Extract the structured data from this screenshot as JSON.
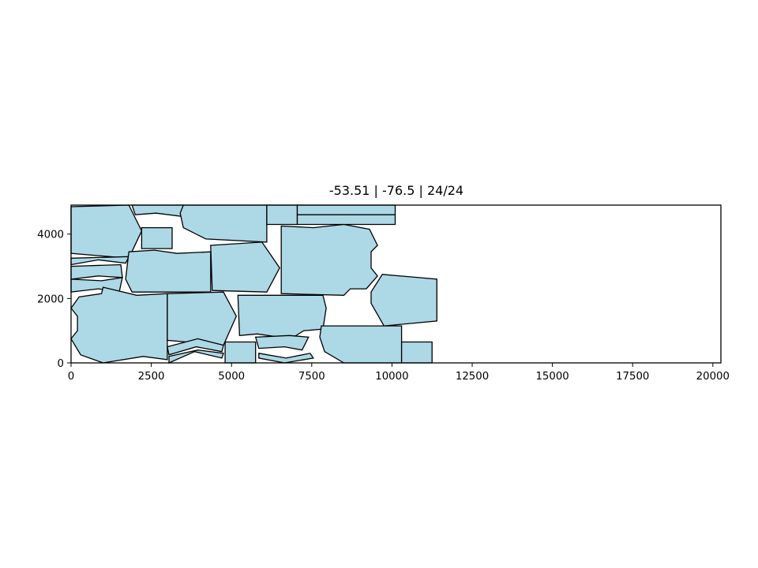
{
  "chart_data": {
    "type": "polygon-layout",
    "title": "-53.51 | -76.5 | 24/24",
    "xlabel": "",
    "ylabel": "",
    "xlim": [
      0,
      20250
    ],
    "ylim": [
      0,
      4900
    ],
    "x_ticks": [
      0,
      2500,
      5000,
      7500,
      10000,
      12500,
      15000,
      17500,
      20000
    ],
    "y_ticks": [
      0,
      2000,
      4000
    ],
    "grid": false,
    "colors": {
      "fill": "#add8e6",
      "edge": "#000000"
    },
    "pieces": [
      [
        [
          0,
          4850
        ],
        [
          1800,
          4900
        ],
        [
          2200,
          4100
        ],
        [
          1800,
          3250
        ],
        [
          0,
          3400
        ]
      ],
      [
        [
          1900,
          4900
        ],
        [
          3500,
          4900
        ],
        [
          3450,
          4550
        ],
        [
          2650,
          4650
        ],
        [
          2000,
          4600
        ]
      ],
      [
        [
          3500,
          4900
        ],
        [
          6100,
          4900
        ],
        [
          6100,
          3750
        ],
        [
          4200,
          3850
        ],
        [
          3500,
          4200
        ],
        [
          3400,
          4650
        ]
      ],
      [
        [
          6100,
          4900
        ],
        [
          7050,
          4900
        ],
        [
          7050,
          4300
        ],
        [
          6100,
          4300
        ]
      ],
      [
        [
          7050,
          4900
        ],
        [
          10100,
          4900
        ],
        [
          10100,
          4600
        ],
        [
          7050,
          4600
        ]
      ],
      [
        [
          7050,
          4600
        ],
        [
          10100,
          4600
        ],
        [
          10100,
          4300
        ],
        [
          7050,
          4300
        ]
      ],
      [
        [
          2200,
          4200
        ],
        [
          3150,
          4200
        ],
        [
          3150,
          3550
        ],
        [
          2200,
          3550
        ]
      ],
      [
        [
          0,
          3250
        ],
        [
          1800,
          3300
        ],
        [
          1700,
          3100
        ],
        [
          850,
          3200
        ],
        [
          0,
          3050
        ]
      ],
      [
        [
          0,
          3000
        ],
        [
          1550,
          3050
        ],
        [
          1600,
          2650
        ],
        [
          850,
          2700
        ],
        [
          0,
          2600
        ]
      ],
      [
        [
          0,
          2600
        ],
        [
          950,
          2550
        ],
        [
          1600,
          2650
        ],
        [
          1500,
          2200
        ],
        [
          850,
          2300
        ],
        [
          0,
          2200
        ]
      ],
      [
        [
          1800,
          3450
        ],
        [
          2600,
          3500
        ],
        [
          3300,
          3400
        ],
        [
          4350,
          3450
        ],
        [
          4350,
          2200
        ],
        [
          1900,
          2200
        ],
        [
          1700,
          2600
        ]
      ],
      [
        [
          4350,
          3650
        ],
        [
          5950,
          3750
        ],
        [
          6500,
          2950
        ],
        [
          6100,
          2200
        ],
        [
          4400,
          2250
        ]
      ],
      [
        [
          6550,
          4250
        ],
        [
          7550,
          4200
        ],
        [
          8500,
          4300
        ],
        [
          9300,
          4150
        ],
        [
          9550,
          3650
        ],
        [
          9350,
          3450
        ],
        [
          9350,
          2950
        ],
        [
          9550,
          2700
        ],
        [
          9200,
          2300
        ],
        [
          8700,
          2300
        ],
        [
          8500,
          2100
        ],
        [
          6550,
          2150
        ]
      ],
      [
        [
          9700,
          2750
        ],
        [
          11400,
          2600
        ],
        [
          11400,
          1300
        ],
        [
          9750,
          1150
        ],
        [
          9350,
          1850
        ],
        [
          9350,
          2200
        ]
      ],
      [
        [
          950,
          2150
        ],
        [
          1000,
          2350
        ],
        [
          2050,
          2100
        ],
        [
          3000,
          2150
        ],
        [
          3000,
          100
        ],
        [
          2250,
          200
        ],
        [
          1000,
          0
        ],
        [
          300,
          250
        ],
        [
          0,
          750
        ],
        [
          200,
          1000
        ],
        [
          200,
          1450
        ],
        [
          0,
          1700
        ],
        [
          250,
          2050
        ]
      ],
      [
        [
          3000,
          2150
        ],
        [
          4750,
          2200
        ],
        [
          5150,
          1450
        ],
        [
          4750,
          550
        ],
        [
          3000,
          700
        ]
      ],
      [
        [
          5200,
          2100
        ],
        [
          7850,
          2100
        ],
        [
          7950,
          1700
        ],
        [
          7850,
          1050
        ],
        [
          7250,
          1000
        ],
        [
          6850,
          750
        ],
        [
          5800,
          900
        ],
        [
          5250,
          850
        ]
      ],
      [
        [
          5750,
          800
        ],
        [
          5850,
          450
        ],
        [
          6650,
          500
        ],
        [
          7200,
          400
        ],
        [
          7400,
          800
        ],
        [
          6800,
          850
        ]
      ],
      [
        [
          7800,
          1150
        ],
        [
          10300,
          1150
        ],
        [
          10300,
          0
        ],
        [
          8500,
          0
        ],
        [
          7900,
          350
        ],
        [
          7750,
          800
        ]
      ],
      [
        [
          10300,
          650
        ],
        [
          11250,
          650
        ],
        [
          11250,
          0
        ],
        [
          10300,
          0
        ]
      ],
      [
        [
          4800,
          650
        ],
        [
          5750,
          650
        ],
        [
          5750,
          0
        ],
        [
          4800,
          0
        ]
      ],
      [
        [
          3000,
          500
        ],
        [
          3950,
          750
        ],
        [
          4750,
          550
        ],
        [
          4700,
          350
        ],
        [
          3900,
          500
        ],
        [
          3050,
          250
        ]
      ],
      [
        [
          3050,
          200
        ],
        [
          3950,
          400
        ],
        [
          4750,
          300
        ],
        [
          4700,
          150
        ],
        [
          3850,
          350
        ],
        [
          3050,
          0
        ]
      ],
      [
        [
          5850,
          300
        ],
        [
          6700,
          150
        ],
        [
          7450,
          300
        ],
        [
          7550,
          150
        ],
        [
          6650,
          0
        ],
        [
          5850,
          150
        ]
      ]
    ]
  }
}
